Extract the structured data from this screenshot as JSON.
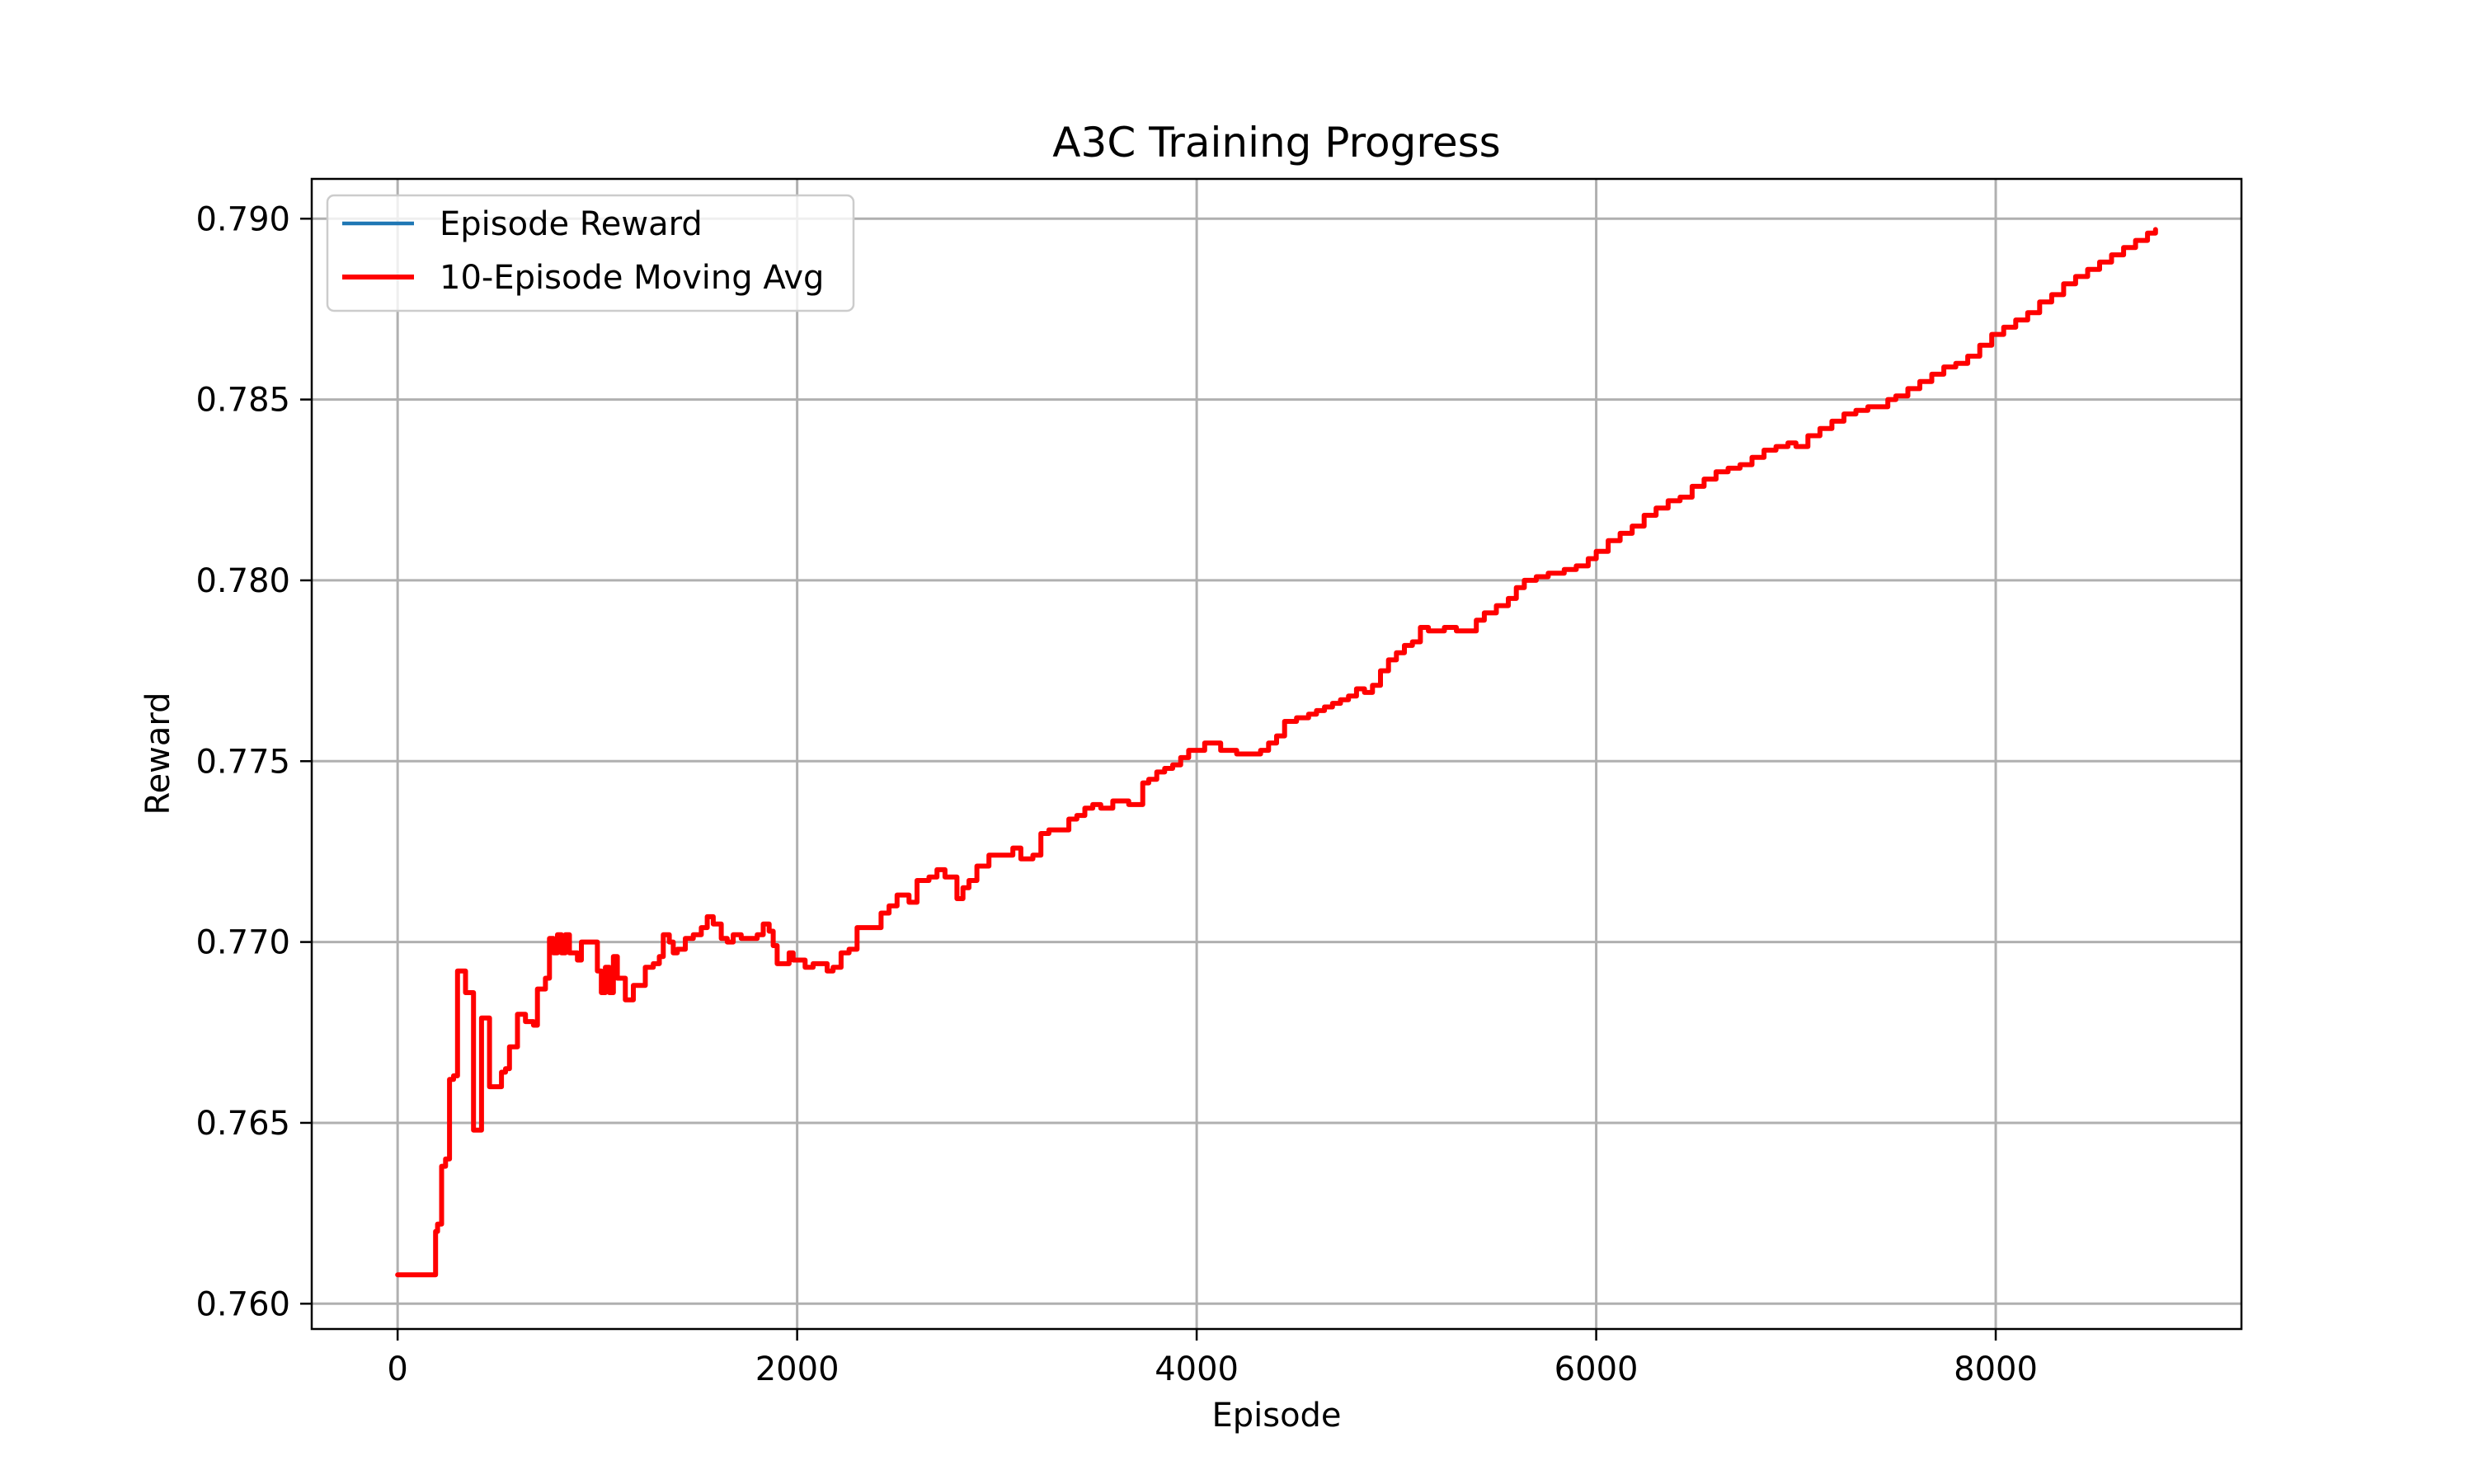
{
  "chart_data": {
    "type": "line",
    "title": "A3C Training Progress",
    "xlabel": "Episode",
    "ylabel": "Reward",
    "xlim": [
      -430,
      9230
    ],
    "ylim": [
      0.7593,
      0.7911
    ],
    "xticks": [
      0,
      2000,
      4000,
      6000,
      8000
    ],
    "xtick_labels": [
      "0",
      "2000",
      "4000",
      "6000",
      "8000"
    ],
    "yticks": [
      0.76,
      0.765,
      0.77,
      0.775,
      0.78,
      0.785,
      0.79
    ],
    "ytick_labels": [
      "0.760",
      "0.765",
      "0.770",
      "0.775",
      "0.780",
      "0.785",
      "0.790"
    ],
    "grid": true,
    "legend_position": "top-left",
    "series": [
      {
        "name": "Episode Reward",
        "color": "#1f77b4",
        "x": [],
        "y": []
      },
      {
        "name": "10-Episode Moving Avg",
        "color": "#ff0000",
        "x": [
          0,
          80,
          170,
          190,
          200,
          220,
          240,
          260,
          280,
          300,
          320,
          340,
          360,
          380,
          400,
          420,
          440,
          460,
          480,
          500,
          520,
          540,
          560,
          580,
          600,
          620,
          640,
          660,
          680,
          700,
          720,
          740,
          760,
          780,
          800,
          820,
          840,
          860,
          880,
          900,
          920,
          960,
          1000,
          1020,
          1040,
          1060,
          1080,
          1100,
          1120,
          1140,
          1160,
          1180,
          1200,
          1240,
          1280,
          1310,
          1330,
          1360,
          1380,
          1400,
          1440,
          1480,
          1520,
          1550,
          1580,
          1620,
          1650,
          1680,
          1720,
          1760,
          1800,
          1830,
          1860,
          1880,
          1900,
          1920,
          1960,
          1980,
          2000,
          2040,
          2080,
          2120,
          2150,
          2180,
          2220,
          2260,
          2300,
          2360,
          2420,
          2460,
          2500,
          2560,
          2600,
          2660,
          2700,
          2740,
          2760,
          2800,
          2830,
          2860,
          2900,
          2960,
          3000,
          3040,
          3080,
          3120,
          3180,
          3220,
          3260,
          3300,
          3360,
          3400,
          3440,
          3480,
          3520,
          3580,
          3620,
          3660,
          3700,
          3730,
          3760,
          3800,
          3840,
          3880,
          3920,
          3960,
          4000,
          4040,
          4080,
          4120,
          4160,
          4200,
          4240,
          4280,
          4320,
          4360,
          4400,
          4440,
          4500,
          4560,
          4600,
          4640,
          4680,
          4720,
          4760,
          4800,
          4840,
          4880,
          4920,
          4960,
          5000,
          5040,
          5080,
          5120,
          5160,
          5200,
          5240,
          5300,
          5360,
          5400,
          5440,
          5500,
          5560,
          5600,
          5640,
          5700,
          5760,
          5800,
          5840,
          5900,
          5960,
          6000,
          6060,
          6120,
          6180,
          6240,
          6300,
          6360,
          6420,
          6480,
          6540,
          6600,
          6660,
          6720,
          6780,
          6840,
          6900,
          6960,
          7000,
          7060,
          7120,
          7180,
          7240,
          7300,
          7360,
          7420,
          7460,
          7500,
          7560,
          7620,
          7680,
          7740,
          7800,
          7860,
          7920,
          7980,
          8040,
          8100,
          8160,
          8220,
          8280,
          8340,
          8400,
          8460,
          8520,
          8580,
          8640,
          8700,
          8760,
          8800
        ],
        "y": [
          0.7608,
          0.7608,
          0.7608,
          0.762,
          0.7622,
          0.7638,
          0.764,
          0.7662,
          0.7663,
          0.7692,
          0.7692,
          0.7686,
          0.7686,
          0.7648,
          0.7648,
          0.7679,
          0.7679,
          0.766,
          0.766,
          0.766,
          0.7664,
          0.7665,
          0.7671,
          0.7671,
          0.768,
          0.768,
          0.7678,
          0.7678,
          0.7677,
          0.7687,
          0.7687,
          0.769,
          0.7701,
          0.7697,
          0.7702,
          0.7697,
          0.7702,
          0.7697,
          0.7697,
          0.7695,
          0.77,
          0.77,
          0.7692,
          0.7686,
          0.7693,
          0.7686,
          0.7696,
          0.769,
          0.769,
          0.7684,
          0.7684,
          0.7688,
          0.7688,
          0.7693,
          0.7694,
          0.7696,
          0.7702,
          0.77,
          0.7697,
          0.7698,
          0.7701,
          0.7702,
          0.7704,
          0.7707,
          0.7705,
          0.7701,
          0.77,
          0.7702,
          0.7701,
          0.7701,
          0.7702,
          0.7705,
          0.7703,
          0.7699,
          0.7694,
          0.7694,
          0.7697,
          0.7695,
          0.7695,
          0.7693,
          0.7694,
          0.7694,
          0.7692,
          0.7693,
          0.7697,
          0.7698,
          0.7704,
          0.7704,
          0.7708,
          0.771,
          0.7713,
          0.7711,
          0.7717,
          0.7718,
          0.772,
          0.7718,
          0.7718,
          0.7712,
          0.7715,
          0.7717,
          0.7721,
          0.7724,
          0.7724,
          0.7724,
          0.7726,
          0.7723,
          0.7724,
          0.773,
          0.7731,
          0.7731,
          0.7734,
          0.7735,
          0.7737,
          0.7738,
          0.7737,
          0.7739,
          0.7739,
          0.7738,
          0.7738,
          0.7744,
          0.7745,
          0.7747,
          0.7748,
          0.7749,
          0.7751,
          0.7753,
          0.7753,
          0.7755,
          0.7755,
          0.7753,
          0.7753,
          0.7752,
          0.7752,
          0.7752,
          0.7753,
          0.7755,
          0.7757,
          0.7761,
          0.7762,
          0.7763,
          0.7764,
          0.7765,
          0.7766,
          0.7767,
          0.7768,
          0.777,
          0.7769,
          0.7771,
          0.7775,
          0.7778,
          0.778,
          0.7782,
          0.7783,
          0.7787,
          0.7786,
          0.7786,
          0.7787,
          0.7786,
          0.7786,
          0.7789,
          0.7791,
          0.7793,
          0.7795,
          0.7798,
          0.78,
          0.7801,
          0.7802,
          0.7802,
          0.7803,
          0.7804,
          0.7806,
          0.7808,
          0.7811,
          0.7813,
          0.7815,
          0.7818,
          0.782,
          0.7822,
          0.7823,
          0.7826,
          0.7828,
          0.783,
          0.7831,
          0.7832,
          0.7834,
          0.7836,
          0.7837,
          0.7838,
          0.7837,
          0.784,
          0.7842,
          0.7844,
          0.7846,
          0.7847,
          0.7848,
          0.7848,
          0.785,
          0.7851,
          0.7853,
          0.7855,
          0.7857,
          0.7859,
          0.786,
          0.7862,
          0.7865,
          0.7868,
          0.787,
          0.7872,
          0.7874,
          0.7877,
          0.7879,
          0.7882,
          0.7884,
          0.7886,
          0.7888,
          0.789,
          0.7892,
          0.7894,
          0.7896,
          0.7897
        ]
      }
    ]
  }
}
